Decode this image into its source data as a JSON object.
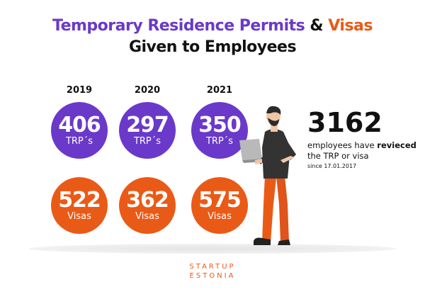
{
  "title": {
    "part1": "Temporary Residence Permits",
    "amp": "&",
    "part2": "Visas",
    "line2": "Given to Employees"
  },
  "chart_data": {
    "type": "table",
    "categories": [
      "2019",
      "2020",
      "2021"
    ],
    "series": [
      {
        "name": "TRP´s",
        "values": [
          406,
          297,
          350
        ]
      },
      {
        "name": "Visas",
        "values": [
          522,
          362,
          575
        ]
      }
    ]
  },
  "summary": {
    "total": "3162",
    "desc_pre": "employees have ",
    "desc_emph": "revieced",
    "desc_post": "the TRP or visa",
    "since": "since 17.01.2017"
  },
  "brand": {
    "line1": "STARTUP",
    "line2": "ESTONIA"
  },
  "colors": {
    "purple": "#6a39c9",
    "orange": "#ea5a17"
  },
  "illustration": "person-with-laptop-icon"
}
